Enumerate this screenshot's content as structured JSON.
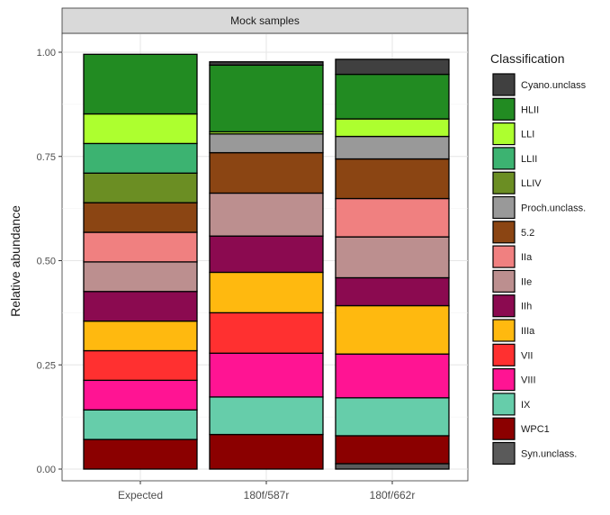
{
  "chart_data": {
    "type": "bar",
    "stacked": true,
    "facet_label": "Mock samples",
    "ylabel": "Relative abundance",
    "xlabel": "",
    "ylim": [
      0,
      1
    ],
    "yticks": [
      "0.00",
      "0.25",
      "0.50",
      "0.75",
      "1.00"
    ],
    "grid": true,
    "legend_position": "right",
    "legend_title": "Classification",
    "categories": [
      "Expected",
      "180f/587r",
      "180f/662r"
    ],
    "series": [
      {
        "name": "Cyano.unclass",
        "color": "#404040",
        "values": [
          0.0,
          0.008,
          0.036
        ]
      },
      {
        "name": "HLII",
        "color": "#228b22",
        "values": [
          0.143,
          0.16,
          0.107
        ]
      },
      {
        "name": "LLI",
        "color": "#adff2f",
        "values": [
          0.071,
          0.005,
          0.042
        ]
      },
      {
        "name": "LLII",
        "color": "#3cb371",
        "values": [
          0.071,
          0.0,
          0.0
        ]
      },
      {
        "name": "LLIV",
        "color": "#6b8e23",
        "values": [
          0.071,
          0.0,
          0.0
        ]
      },
      {
        "name": "Proch.unclass.",
        "color": "#999999",
        "values": [
          0.0,
          0.045,
          0.054
        ]
      },
      {
        "name": "5.2",
        "color": "#8b4513",
        "values": [
          0.071,
          0.097,
          0.095
        ]
      },
      {
        "name": "IIa",
        "color": "#f08080",
        "values": [
          0.071,
          0.0,
          0.092
        ]
      },
      {
        "name": "IIe",
        "color": "#bc8f8f",
        "values": [
          0.071,
          0.103,
          0.098
        ]
      },
      {
        "name": "IIh",
        "color": "#8b0a50",
        "values": [
          0.071,
          0.087,
          0.067
        ]
      },
      {
        "name": "IIIa",
        "color": "#ffb90f",
        "values": [
          0.071,
          0.097,
          0.116
        ]
      },
      {
        "name": "VII",
        "color": "#ff3030",
        "values": [
          0.071,
          0.097,
          0.0
        ]
      },
      {
        "name": "VIII",
        "color": "#ff1493",
        "values": [
          0.071,
          0.105,
          0.105
        ]
      },
      {
        "name": "IX",
        "color": "#66cdaa",
        "values": [
          0.071,
          0.09,
          0.091
        ]
      },
      {
        "name": "WPC1",
        "color": "#8b0000",
        "values": [
          0.071,
          0.083,
          0.067
        ]
      },
      {
        "name": "Syn.unclass.",
        "color": "#5a5a5a",
        "values": [
          0.0,
          0.0,
          0.013
        ]
      }
    ]
  }
}
